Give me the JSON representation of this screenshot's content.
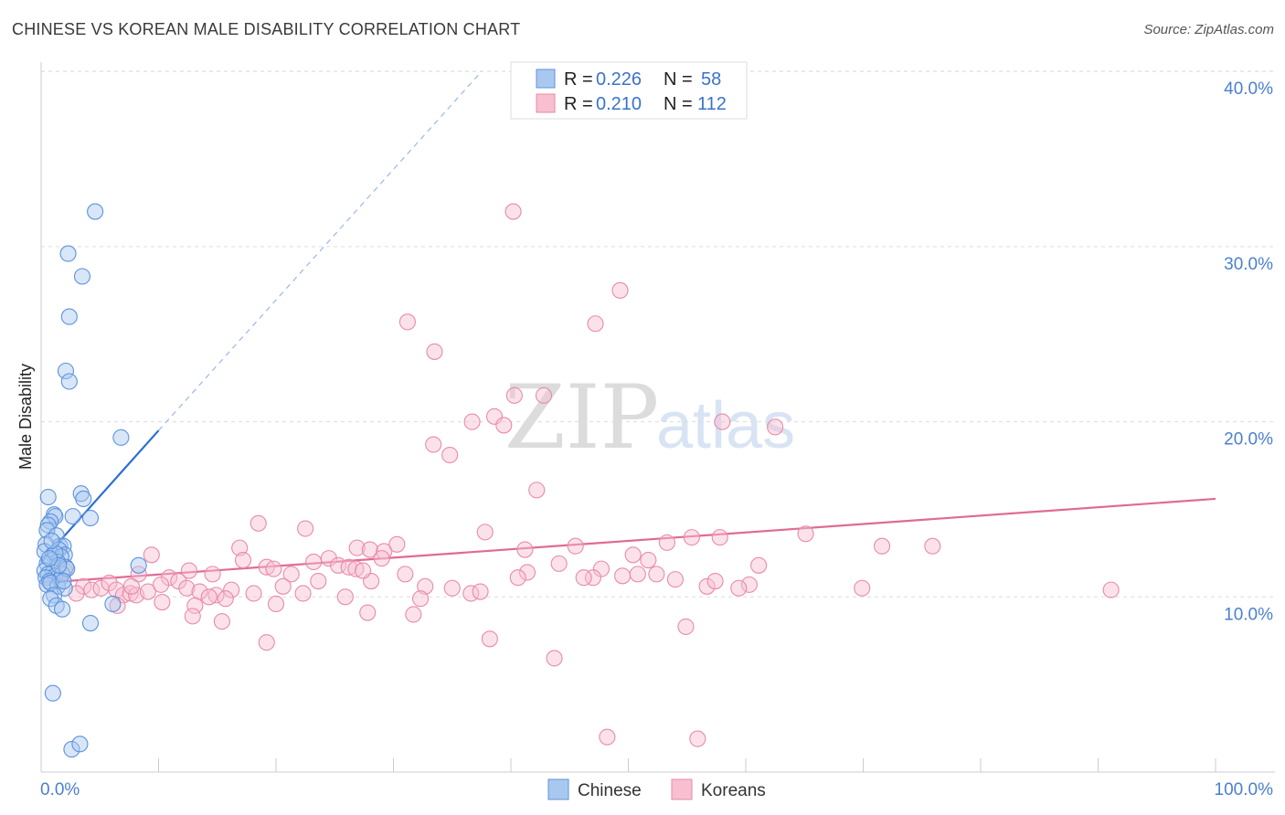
{
  "title": "CHINESE VS KOREAN MALE DISABILITY CORRELATION CHART",
  "source": "Source: ZipAtlas.com",
  "watermark": {
    "zip": "ZIP",
    "atlas": "atlas"
  },
  "legend": {
    "rows": [
      {
        "r_label": "R = ",
        "r_value": "0.226",
        "n_label": "N = ",
        "n_value": "58"
      },
      {
        "r_label": "R = ",
        "r_value": "0.210",
        "n_label": "N = ",
        "n_value": "112"
      }
    ]
  },
  "bottom_legend": {
    "chinese": "Chinese",
    "koreans": "Koreans"
  },
  "colors": {
    "chinese_fill": "#a9c8f0",
    "chinese_stroke": "#5b93dc",
    "chinese_line": "#2a6fd4",
    "korean_fill": "#f7bfd0",
    "korean_stroke": "#e98aa8",
    "korean_line": "#e06a96",
    "grid": "#dddddd",
    "axis_text": "#4a7fd0"
  },
  "chart_data": {
    "type": "scatter",
    "title": "CHINESE VS KOREAN MALE DISABILITY CORRELATION CHART",
    "xlabel": "",
    "ylabel": "Male Disability",
    "xlim": [
      0,
      100
    ],
    "ylim": [
      0,
      42
    ],
    "x_tick_labels": [
      "0.0%",
      "100.0%"
    ],
    "y_ticks": [
      10,
      20,
      30,
      40
    ],
    "y_tick_labels": [
      "10.0%",
      "20.0%",
      "30.0%",
      "40.0%"
    ],
    "series": [
      {
        "name": "Chinese",
        "R": 0.226,
        "N": 58,
        "trend": {
          "x0": 0.0,
          "y0": 12.0,
          "x1": 10.0,
          "y1": 19.5,
          "dash_x1": 37.5,
          "dash_y1": 40.0
        },
        "points": [
          [
            4.6,
            32.0
          ],
          [
            2.3,
            29.6
          ],
          [
            3.5,
            28.3
          ],
          [
            2.4,
            26.0
          ],
          [
            2.1,
            22.9
          ],
          [
            2.4,
            22.3
          ],
          [
            6.8,
            19.1
          ],
          [
            0.6,
            15.7
          ],
          [
            3.4,
            15.9
          ],
          [
            3.6,
            15.6
          ],
          [
            1.1,
            14.7
          ],
          [
            1.2,
            14.6
          ],
          [
            2.7,
            14.6
          ],
          [
            4.2,
            14.5
          ],
          [
            0.8,
            14.3
          ],
          [
            0.6,
            14.1
          ],
          [
            0.5,
            13.8
          ],
          [
            1.3,
            13.5
          ],
          [
            0.4,
            13.0
          ],
          [
            1.6,
            12.9
          ],
          [
            1.9,
            12.9
          ],
          [
            1.5,
            12.7
          ],
          [
            0.3,
            12.6
          ],
          [
            1.0,
            12.4
          ],
          [
            2.0,
            12.4
          ],
          [
            1.7,
            12.3
          ],
          [
            0.9,
            12.1
          ],
          [
            1.4,
            12.0
          ],
          [
            0.5,
            11.9
          ],
          [
            2.1,
            11.7
          ],
          [
            0.3,
            11.5
          ],
          [
            1.0,
            11.4
          ],
          [
            0.6,
            11.3
          ],
          [
            1.2,
            11.2
          ],
          [
            0.4,
            11.1
          ],
          [
            1.6,
            11.0
          ],
          [
            0.7,
            10.9
          ],
          [
            0.5,
            10.7
          ],
          [
            1.4,
            10.6
          ],
          [
            2.0,
            10.5
          ],
          [
            0.8,
            10.8
          ],
          [
            1.8,
            11.3
          ],
          [
            8.3,
            11.8
          ],
          [
            1.1,
            10.1
          ],
          [
            0.8,
            9.9
          ],
          [
            1.3,
            9.5
          ],
          [
            1.8,
            9.3
          ],
          [
            6.1,
            9.6
          ],
          [
            4.2,
            8.5
          ],
          [
            1.0,
            4.5
          ],
          [
            2.6,
            1.3
          ],
          [
            3.3,
            1.6
          ],
          [
            1.2,
            12.5
          ],
          [
            0.9,
            13.2
          ],
          [
            2.2,
            11.6
          ],
          [
            1.5,
            11.8
          ],
          [
            0.7,
            12.2
          ],
          [
            1.9,
            10.9
          ]
        ]
      },
      {
        "name": "Koreans",
        "R": 0.21,
        "N": 112,
        "trend": {
          "x0": 0.0,
          "y0": 10.8,
          "x1": 100.0,
          "y1": 15.6
        },
        "points": [
          [
            40.2,
            32.0
          ],
          [
            49.3,
            27.5
          ],
          [
            31.2,
            25.7
          ],
          [
            47.2,
            25.6
          ],
          [
            33.5,
            24.0
          ],
          [
            40.3,
            21.5
          ],
          [
            42.8,
            21.5
          ],
          [
            36.7,
            20.0
          ],
          [
            38.6,
            20.3
          ],
          [
            39.4,
            19.8
          ],
          [
            58.0,
            20.0
          ],
          [
            62.5,
            19.7
          ],
          [
            33.4,
            18.7
          ],
          [
            34.8,
            18.1
          ],
          [
            42.2,
            16.1
          ],
          [
            18.5,
            14.2
          ],
          [
            22.5,
            13.9
          ],
          [
            37.8,
            13.7
          ],
          [
            55.4,
            13.4
          ],
          [
            65.1,
            13.6
          ],
          [
            57.8,
            13.4
          ],
          [
            45.5,
            12.9
          ],
          [
            53.3,
            13.1
          ],
          [
            71.6,
            12.9
          ],
          [
            75.9,
            12.9
          ],
          [
            16.9,
            12.8
          ],
          [
            26.9,
            12.8
          ],
          [
            28.0,
            12.7
          ],
          [
            29.2,
            12.6
          ],
          [
            30.3,
            13.0
          ],
          [
            24.5,
            12.2
          ],
          [
            50.4,
            12.4
          ],
          [
            51.7,
            12.1
          ],
          [
            61.1,
            11.8
          ],
          [
            12.6,
            11.5
          ],
          [
            19.2,
            11.7
          ],
          [
            19.8,
            11.6
          ],
          [
            21.3,
            11.3
          ],
          [
            25.3,
            11.8
          ],
          [
            26.2,
            11.7
          ],
          [
            26.8,
            11.6
          ],
          [
            31.0,
            11.3
          ],
          [
            41.4,
            11.4
          ],
          [
            47.7,
            11.6
          ],
          [
            47.0,
            11.1
          ],
          [
            49.5,
            11.2
          ],
          [
            50.8,
            11.3
          ],
          [
            52.4,
            11.3
          ],
          [
            8.3,
            11.3
          ],
          [
            10.9,
            11.1
          ],
          [
            14.6,
            11.3
          ],
          [
            23.6,
            10.9
          ],
          [
            28.1,
            10.9
          ],
          [
            32.7,
            10.6
          ],
          [
            40.6,
            11.1
          ],
          [
            46.2,
            11.1
          ],
          [
            56.7,
            10.6
          ],
          [
            57.4,
            10.9
          ],
          [
            60.3,
            10.7
          ],
          [
            69.9,
            10.5
          ],
          [
            91.1,
            10.4
          ],
          [
            59.4,
            10.5
          ],
          [
            54.0,
            11.0
          ],
          [
            2.0,
            11.5
          ],
          [
            3.6,
            10.6
          ],
          [
            4.3,
            10.4
          ],
          [
            5.1,
            10.5
          ],
          [
            5.8,
            10.8
          ],
          [
            6.4,
            10.4
          ],
          [
            7.0,
            10.1
          ],
          [
            7.6,
            10.2
          ],
          [
            8.1,
            10.1
          ],
          [
            9.1,
            10.3
          ],
          [
            10.2,
            10.7
          ],
          [
            11.7,
            10.9
          ],
          [
            12.4,
            10.5
          ],
          [
            13.5,
            10.3
          ],
          [
            14.9,
            10.1
          ],
          [
            16.2,
            10.4
          ],
          [
            18.1,
            10.2
          ],
          [
            20.6,
            10.6
          ],
          [
            22.3,
            10.2
          ],
          [
            25.9,
            10.0
          ],
          [
            36.6,
            10.2
          ],
          [
            37.4,
            10.3
          ],
          [
            14.3,
            10.0
          ],
          [
            15.7,
            9.9
          ],
          [
            3.0,
            10.2
          ],
          [
            6.5,
            9.5
          ],
          [
            10.3,
            9.7
          ],
          [
            13.1,
            9.5
          ],
          [
            20.0,
            9.6
          ],
          [
            27.8,
            9.1
          ],
          [
            31.7,
            9.0
          ],
          [
            32.3,
            9.9
          ],
          [
            12.9,
            8.9
          ],
          [
            15.4,
            8.6
          ],
          [
            19.2,
            7.4
          ],
          [
            38.2,
            7.6
          ],
          [
            43.7,
            6.5
          ],
          [
            54.9,
            8.3
          ],
          [
            48.2,
            2.0
          ],
          [
            55.9,
            1.9
          ],
          [
            41.2,
            12.7
          ],
          [
            35.0,
            10.5
          ],
          [
            17.2,
            12.1
          ],
          [
            9.4,
            12.4
          ],
          [
            23.2,
            12.0
          ],
          [
            29.0,
            12.2
          ],
          [
            44.1,
            11.9
          ],
          [
            7.7,
            10.6
          ],
          [
            27.4,
            11.5
          ]
        ]
      }
    ]
  }
}
